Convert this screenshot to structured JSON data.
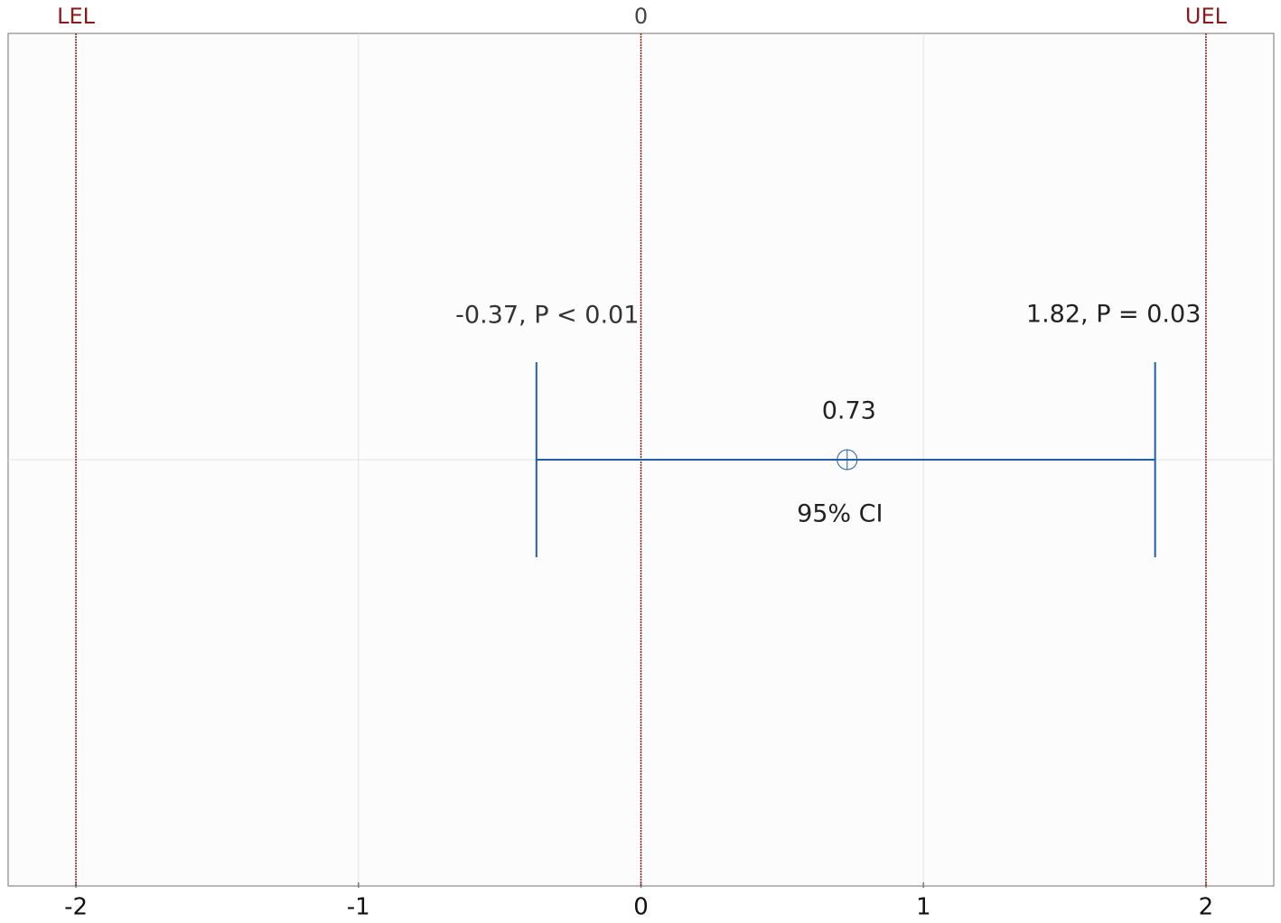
{
  "chart_data": {
    "type": "interval",
    "xlim": [
      -2.24,
      2.24
    ],
    "xticks": [
      -2,
      -1,
      0,
      1,
      2
    ],
    "grid": true,
    "reference_lines": [
      {
        "value": -2,
        "label": "LEL"
      },
      {
        "value": 0,
        "label": "0"
      },
      {
        "value": 2,
        "label": "UEL"
      }
    ],
    "reference_color": "#8b1a1a",
    "interval": {
      "name": "95% CI",
      "lower": -0.37,
      "estimate": 0.73,
      "upper": 1.82,
      "value_labels": {
        "lower": "-0.37, P < 0.01",
        "upper": "1.82, P = 0.03"
      },
      "color": "#1f5fa8"
    }
  }
}
